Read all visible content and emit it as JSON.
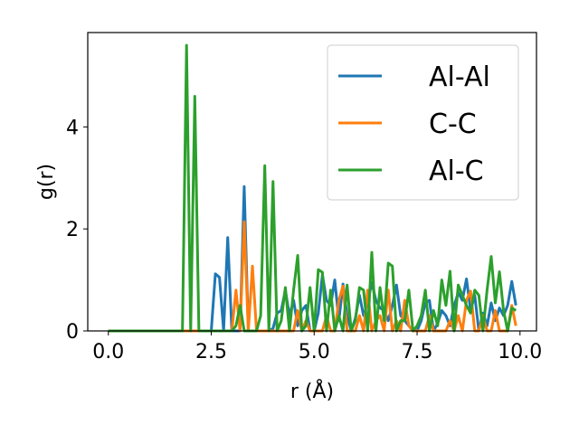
{
  "chart_data": {
    "type": "line",
    "xlabel": "r (Å)",
    "ylabel": "g(r)",
    "xlim": [
      -0.5,
      10.4
    ],
    "ylim": [
      0,
      5.85
    ],
    "xticks": [
      0.0,
      2.5,
      5.0,
      7.5,
      10.0
    ],
    "xtick_labels": [
      "0.0",
      "2.5",
      "5.0",
      "7.5",
      "10.0"
    ],
    "yticks": [
      0,
      2,
      4
    ],
    "ytick_labels": [
      "0",
      "2",
      "4"
    ],
    "grid": false,
    "legend_position": "top-right",
    "series": [
      {
        "name": "Al-Al",
        "color": "#1f77b4",
        "x": [
          0,
          2.4,
          2.5,
          2.6,
          2.7,
          2.8,
          2.9,
          3.0,
          3.1,
          3.2,
          3.3,
          3.4,
          3.5,
          3.6,
          3.7,
          3.8,
          3.9,
          4.0,
          4.1,
          4.2,
          4.3,
          4.4,
          4.5,
          4.6,
          4.7,
          4.8,
          4.9,
          5.0,
          5.1,
          5.2,
          5.3,
          5.4,
          5.5,
          5.6,
          5.7,
          5.8,
          5.9,
          6.0,
          6.1,
          6.2,
          6.3,
          6.4,
          6.5,
          6.6,
          6.7,
          6.8,
          6.9,
          7.0,
          7.1,
          7.2,
          7.3,
          7.4,
          7.5,
          7.6,
          7.7,
          7.8,
          7.9,
          8.0,
          8.1,
          8.2,
          8.3,
          8.4,
          8.5,
          8.6,
          8.7,
          8.8,
          8.9,
          9.0,
          9.1,
          9.2,
          9.3,
          9.4,
          9.5,
          9.6,
          9.7,
          9.8,
          9.9
        ],
        "y": [
          0,
          0,
          0,
          1.12,
          1.05,
          0,
          1.83,
          0,
          0,
          0,
          2.83,
          0,
          0,
          0,
          0,
          0,
          0,
          0.05,
          0.35,
          0.4,
          0.8,
          0.3,
          0.6,
          0.1,
          0.4,
          0.5,
          0,
          0,
          0.35,
          1.1,
          0.6,
          0.5,
          1.0,
          0.2,
          0.92,
          0.3,
          0,
          0.25,
          0.7,
          0.3,
          0.55,
          0.95,
          0.6,
          0.45,
          0.4,
          0.2,
          0.5,
          0.9,
          0.3,
          0.2,
          0.1,
          0,
          0,
          0.2,
          0.55,
          0.6,
          0,
          0.15,
          0.4,
          0.3,
          0.1,
          0.5,
          0.75,
          0.6,
          1.02,
          0.4,
          0.7,
          0,
          0.35,
          0.1,
          0.55,
          0.2,
          0.45,
          0.3,
          0.5,
          0.97,
          0.5
        ]
      },
      {
        "name": "C-C",
        "color": "#ff7f0e",
        "x": [
          0,
          3.0,
          3.1,
          3.2,
          3.3,
          3.4,
          3.5,
          3.6,
          3.7,
          3.8,
          3.9,
          4.0,
          4.1,
          4.2,
          4.3,
          4.4,
          4.5,
          4.6,
          4.7,
          4.8,
          4.9,
          5.0,
          5.1,
          5.2,
          5.3,
          5.4,
          5.5,
          5.6,
          5.7,
          5.8,
          5.9,
          6.0,
          6.1,
          6.2,
          6.3,
          6.4,
          6.5,
          6.6,
          6.7,
          6.8,
          6.9,
          7.0,
          7.1,
          7.2,
          7.3,
          7.4,
          7.5,
          7.6,
          7.7,
          7.8,
          7.9,
          8.0,
          8.1,
          8.2,
          8.3,
          8.4,
          8.5,
          8.6,
          8.7,
          8.8,
          8.9,
          9.0,
          9.1,
          9.2,
          9.3,
          9.4,
          9.5,
          9.6,
          9.7,
          9.8,
          9.9
        ],
        "y": [
          0,
          0,
          0.8,
          0,
          2.14,
          0,
          1.27,
          0,
          0,
          0,
          0,
          0,
          0,
          0,
          0,
          0,
          0,
          0.4,
          0,
          0.2,
          0,
          0,
          0,
          0,
          0.3,
          0,
          0,
          0.6,
          0.88,
          0,
          0,
          0,
          0.3,
          0,
          0.8,
          0,
          0.2,
          0.3,
          0,
          0.8,
          0,
          0.2,
          0,
          0.6,
          0.1,
          0,
          0,
          0,
          0,
          0.3,
          0,
          0,
          0,
          0,
          0.2,
          0,
          0.3,
          0,
          0.6,
          0.78,
          0,
          0,
          0.3,
          0,
          0,
          0.4,
          0,
          0,
          0,
          0.5,
          0.1
        ]
      },
      {
        "name": "Al-C",
        "color": "#2ca02c",
        "x": [
          0,
          1.8,
          1.9,
          2.0,
          2.1,
          2.2,
          2.3,
          2.4,
          2.5,
          2.6,
          2.7,
          2.8,
          2.9,
          3.0,
          3.1,
          3.2,
          3.3,
          3.4,
          3.5,
          3.6,
          3.7,
          3.8,
          3.9,
          4.0,
          4.1,
          4.2,
          4.3,
          4.4,
          4.5,
          4.6,
          4.7,
          4.8,
          4.9,
          5.0,
          5.1,
          5.2,
          5.3,
          5.4,
          5.5,
          5.6,
          5.7,
          5.8,
          5.9,
          6.0,
          6.1,
          6.2,
          6.3,
          6.4,
          6.5,
          6.6,
          6.7,
          6.8,
          6.9,
          7.0,
          7.1,
          7.2,
          7.3,
          7.4,
          7.5,
          7.6,
          7.7,
          7.8,
          7.9,
          8.0,
          8.1,
          8.2,
          8.3,
          8.4,
          8.5,
          8.6,
          8.7,
          8.8,
          8.9,
          9.0,
          9.1,
          9.2,
          9.3,
          9.4,
          9.5,
          9.6,
          9.7,
          9.8,
          9.9
        ],
        "y": [
          0,
          0,
          5.6,
          0,
          4.6,
          0,
          0,
          0,
          0,
          0,
          0,
          0,
          0,
          0,
          0.1,
          0.5,
          0,
          0,
          0,
          0,
          0.3,
          3.24,
          0,
          2.93,
          0,
          0.2,
          0.85,
          0,
          0.8,
          1.48,
          0,
          0.1,
          0.85,
          0,
          1.2,
          1.15,
          0,
          0.8,
          0,
          0.3,
          0,
          0.9,
          0,
          0.2,
          0.85,
          0.8,
          0,
          1.54,
          0,
          0.85,
          0.2,
          1.33,
          1.27,
          0,
          0.2,
          0.2,
          0.8,
          0,
          0.1,
          0.3,
          0.8,
          0,
          0.4,
          0.1,
          1.0,
          0.5,
          1.17,
          0,
          0.9,
          0.7,
          0.5,
          0.35,
          0.8,
          0.7,
          0,
          0.8,
          1.46,
          0.55,
          1.16,
          0.4,
          0,
          0.45,
          0.4
        ]
      }
    ]
  }
}
